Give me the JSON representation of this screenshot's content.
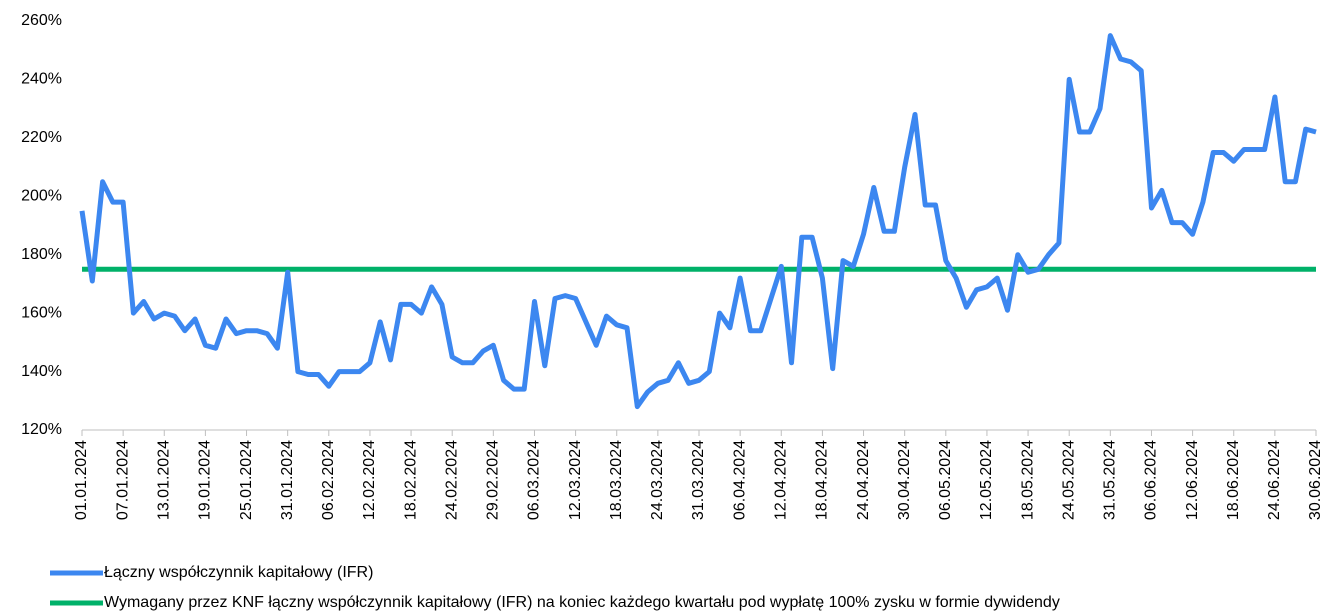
{
  "chart_data": {
    "type": "line",
    "categories": [
      "01.01.2024",
      null,
      null,
      null,
      "07.01.2024",
      null,
      null,
      null,
      "13.01.2024",
      null,
      null,
      null,
      "19.01.2024",
      null,
      null,
      null,
      "25.01.2024",
      null,
      null,
      null,
      "31.01.2024",
      null,
      null,
      null,
      "06.02.2024",
      null,
      null,
      null,
      "12.02.2024",
      null,
      null,
      null,
      "18.02.2024",
      null,
      null,
      null,
      "24.02.2024",
      null,
      null,
      null,
      "29.02.2024",
      null,
      null,
      null,
      "06.03.2024",
      null,
      null,
      null,
      "12.03.2024",
      null,
      null,
      null,
      "18.03.2024",
      null,
      null,
      null,
      "24.03.2024",
      null,
      null,
      null,
      "31.03.2024",
      null,
      null,
      null,
      "06.04.2024",
      null,
      null,
      null,
      "12.04.2024",
      null,
      null,
      null,
      "18.04.2024",
      null,
      null,
      null,
      "24.04.2024",
      null,
      null,
      null,
      "30.04.2024",
      null,
      null,
      null,
      "06.05.2024",
      null,
      null,
      null,
      "12.05.2024",
      null,
      null,
      null,
      "18.05.2024",
      null,
      null,
      null,
      "24.05.2024",
      null,
      null,
      null,
      "31.05.2024",
      null,
      null,
      null,
      "06.06.2024",
      null,
      null,
      null,
      "12.06.2024",
      null,
      null,
      null,
      "18.06.2024",
      null,
      null,
      null,
      "24.06.2024",
      null,
      null,
      null,
      "30.06.2024"
    ],
    "series": [
      {
        "name": "Łączny współczynnik kapitałowy (IFR)",
        "color": "#3c87f0",
        "values": [
          195,
          171,
          205,
          198,
          198,
          160,
          164,
          158,
          160,
          159,
          154,
          158,
          149,
          148,
          158,
          153,
          154,
          154,
          153,
          148,
          174,
          140,
          139,
          139,
          135,
          140,
          140,
          140,
          143,
          157,
          144,
          163,
          163,
          160,
          169,
          163,
          145,
          143,
          143,
          147,
          149,
          137,
          134,
          134,
          164,
          142,
          165,
          166,
          165,
          157,
          149,
          159,
          156,
          155,
          128,
          133,
          136,
          137,
          143,
          136,
          137,
          140,
          160,
          155,
          172,
          154,
          154,
          165,
          176,
          143,
          186,
          186,
          172,
          141,
          178,
          176,
          187,
          203,
          188,
          188,
          210,
          228,
          197,
          197,
          178,
          172,
          162,
          168,
          169,
          172,
          161,
          180,
          174,
          175,
          180,
          184,
          240,
          222,
          222,
          230,
          255,
          247,
          246,
          243,
          196,
          202,
          191,
          191,
          187,
          198,
          215,
          215,
          212,
          216,
          216,
          216,
          234,
          205,
          205,
          223,
          222
        ]
      },
      {
        "name": "Wymagany przez KNF łączny współczynnik kapitałowy (IFR) na koniec każdego kwartału pod wypłatę 100% zysku w formie dywidendy",
        "color": "#00b169",
        "values": [
          175,
          175,
          175,
          175,
          175,
          175,
          175,
          175,
          175,
          175,
          175,
          175,
          175,
          175,
          175,
          175,
          175,
          175,
          175,
          175,
          175,
          175,
          175,
          175,
          175,
          175,
          175,
          175,
          175,
          175,
          175,
          175,
          175,
          175,
          175,
          175,
          175,
          175,
          175,
          175,
          175,
          175,
          175,
          175,
          175,
          175,
          175,
          175,
          175,
          175,
          175,
          175,
          175,
          175,
          175,
          175,
          175,
          175,
          175,
          175,
          175,
          175,
          175,
          175,
          175,
          175,
          175,
          175,
          175,
          175,
          175,
          175,
          175,
          175,
          175,
          175,
          175,
          175,
          175,
          175,
          175,
          175,
          175,
          175,
          175,
          175,
          175,
          175,
          175,
          175,
          175,
          175,
          175,
          175,
          175,
          175,
          175,
          175,
          175,
          175,
          175,
          175,
          175,
          175,
          175,
          175,
          175,
          175,
          175,
          175,
          175,
          175,
          175,
          175,
          175,
          175,
          175,
          175,
          175,
          175,
          175
        ]
      }
    ],
    "ylim": [
      120,
      260
    ],
    "yticks": [
      {
        "value": 120,
        "label": "120%"
      },
      {
        "value": 140,
        "label": "140%"
      },
      {
        "value": 160,
        "label": "160%"
      },
      {
        "value": 180,
        "label": "180%"
      },
      {
        "value": 200,
        "label": "200%"
      },
      {
        "value": 220,
        "label": "220%"
      },
      {
        "value": 240,
        "label": "240%"
      },
      {
        "value": 260,
        "label": "260%"
      }
    ],
    "grid": false
  }
}
